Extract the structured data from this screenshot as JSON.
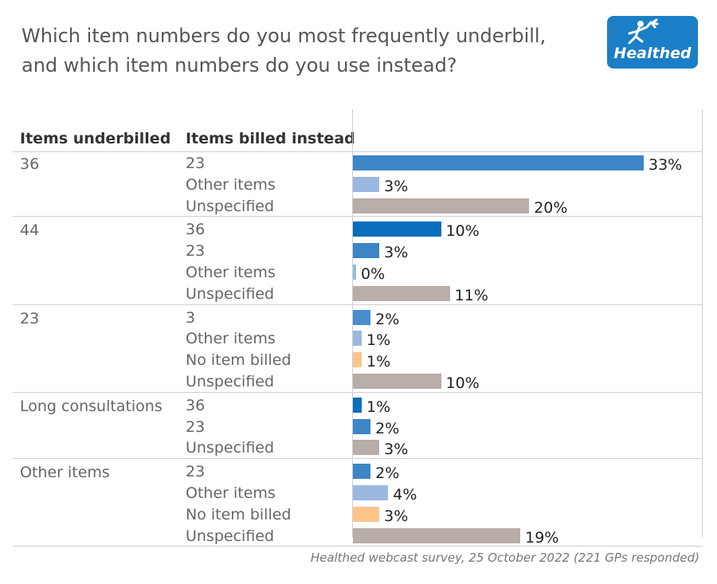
{
  "title_line1": "Which item numbers do you most frequently underbill,",
  "title_line2": "and which item numbers do you use instead?",
  "logo_text": "Healthed",
  "footer": "Healthed webcast survey, 25 October 2022  (221 GPs responded)",
  "colors": {
    "36": "#0a6ebd",
    "23": "#3d85c6",
    "3": "#4a8cd0",
    "Other items": "#9bb8e0",
    "No item billed": "#fbc58a",
    "Unspecified": "#b8ada8"
  },
  "chart_data": {
    "type": "bar",
    "orientation": "horizontal",
    "unit": "%",
    "column_headers": [
      "Items underbilled",
      "Items billed instead"
    ],
    "groups": [
      {
        "label": "36",
        "items": [
          {
            "label": "23",
            "value": 33,
            "display": "33%"
          },
          {
            "label": "Other items",
            "value": 3,
            "display": "3%"
          },
          {
            "label": "Unspecified",
            "value": 20,
            "display": "20%"
          }
        ]
      },
      {
        "label": "44",
        "items": [
          {
            "label": "36",
            "value": 10,
            "display": "10%"
          },
          {
            "label": "23",
            "value": 3,
            "display": "3%"
          },
          {
            "label": "Other items",
            "value": 0,
            "display": "0%"
          },
          {
            "label": "Unspecified",
            "value": 11,
            "display": "11%"
          }
        ]
      },
      {
        "label": "23",
        "items": [
          {
            "label": "3",
            "value": 2,
            "display": "2%"
          },
          {
            "label": "Other items",
            "value": 1,
            "display": "1%"
          },
          {
            "label": "No item billed",
            "value": 1,
            "display": "1%"
          },
          {
            "label": "Unspecified",
            "value": 10,
            "display": "10%"
          }
        ]
      },
      {
        "label": "Long consultations",
        "items": [
          {
            "label": "36",
            "value": 1,
            "display": "1%"
          },
          {
            "label": "23",
            "value": 2,
            "display": "2%"
          },
          {
            "label": "Unspecified",
            "value": 3,
            "display": "3%"
          }
        ]
      },
      {
        "label": "Other items",
        "items": [
          {
            "label": "23",
            "value": 2,
            "display": "2%"
          },
          {
            "label": "Other items",
            "value": 4,
            "display": "4%"
          },
          {
            "label": "No item billed",
            "value": 3,
            "display": "3%"
          },
          {
            "label": "Unspecified",
            "value": 19,
            "display": "19%"
          }
        ]
      }
    ]
  }
}
